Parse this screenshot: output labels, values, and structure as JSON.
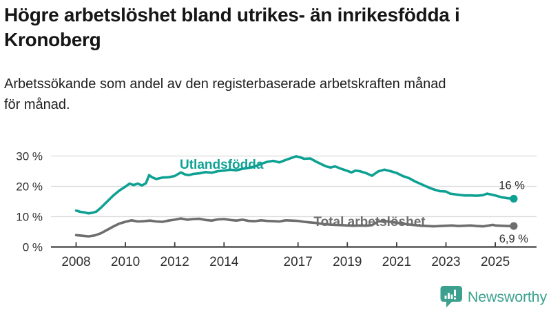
{
  "header": {
    "title_lines": [
      "Högre arbetslöshet bland utrikes- än inrikesfödda i",
      "Kronoberg"
    ],
    "subtitle_lines": [
      "Arbetssökande som andel av den registerbaserade arbetskraften månad",
      "för månad."
    ]
  },
  "chart_data": {
    "type": "line",
    "title": "Högre arbetslöshet bland utrikes- än inrikesfödda i Kronoberg",
    "subtitle": "Arbetssökande som andel av den registerbaserade arbetskraften månad för månad.",
    "x_unit": "decimal year (monthly data)",
    "x_range": [
      2008.0,
      2025.75
    ],
    "ylim": [
      0,
      32
    ],
    "grid": "horizontal",
    "legend_position": "inline-labels",
    "axis_color": "#3d3d3d",
    "grid_color": "#dadada",
    "tick_label_color": "#2f2f2f",
    "y_ticks": {
      "values": [
        0,
        10,
        20,
        30
      ],
      "labels": [
        "0 %",
        "10 %",
        "20 %",
        "30 %"
      ]
    },
    "x_ticks": {
      "values": [
        2008,
        2010,
        2012,
        2014,
        2017,
        2019,
        2021,
        2023,
        2025
      ],
      "labels": [
        "2008",
        "2010",
        "2012",
        "2014",
        "2017",
        "2019",
        "2021",
        "2023",
        "2025"
      ]
    },
    "series": [
      {
        "name": "Utlandsfödda",
        "color": "#0ea193",
        "end_label": "16 %",
        "end_value": 16,
        "inline_label": {
          "text": "Utlandsfödda",
          "x": 2013.9,
          "y": 25.8
        },
        "points": [
          [
            2008.0,
            12.0
          ],
          [
            2008.17,
            11.6
          ],
          [
            2008.33,
            11.4
          ],
          [
            2008.5,
            11.1
          ],
          [
            2008.67,
            11.3
          ],
          [
            2008.83,
            11.7
          ],
          [
            2009.0,
            12.9
          ],
          [
            2009.25,
            14.9
          ],
          [
            2009.5,
            16.9
          ],
          [
            2009.75,
            18.6
          ],
          [
            2010.0,
            19.9
          ],
          [
            2010.17,
            20.9
          ],
          [
            2010.33,
            20.4
          ],
          [
            2010.5,
            20.9
          ],
          [
            2010.67,
            20.3
          ],
          [
            2010.83,
            21.0
          ],
          [
            2010.96,
            23.7
          ],
          [
            2011.08,
            23.0
          ],
          [
            2011.25,
            22.4
          ],
          [
            2011.5,
            22.9
          ],
          [
            2011.75,
            23.0
          ],
          [
            2012.0,
            23.4
          ],
          [
            2012.25,
            24.6
          ],
          [
            2012.42,
            23.9
          ],
          [
            2012.58,
            23.7
          ],
          [
            2012.75,
            24.1
          ],
          [
            2013.0,
            24.3
          ],
          [
            2013.25,
            24.7
          ],
          [
            2013.5,
            24.5
          ],
          [
            2013.75,
            25.0
          ],
          [
            2014.0,
            25.2
          ],
          [
            2014.25,
            25.5
          ],
          [
            2014.5,
            25.3
          ],
          [
            2014.75,
            25.8
          ],
          [
            2015.0,
            26.1
          ],
          [
            2015.25,
            26.6
          ],
          [
            2015.5,
            27.4
          ],
          [
            2015.75,
            28.1
          ],
          [
            2016.0,
            28.4
          ],
          [
            2016.25,
            27.9
          ],
          [
            2016.5,
            28.7
          ],
          [
            2016.75,
            29.4
          ],
          [
            2016.92,
            29.9
          ],
          [
            2017.08,
            29.6
          ],
          [
            2017.25,
            29.1
          ],
          [
            2017.5,
            29.2
          ],
          [
            2017.75,
            28.1
          ],
          [
            2018.0,
            27.1
          ],
          [
            2018.17,
            26.5
          ],
          [
            2018.33,
            26.2
          ],
          [
            2018.5,
            26.6
          ],
          [
            2018.75,
            25.8
          ],
          [
            2019.0,
            25.1
          ],
          [
            2019.17,
            24.6
          ],
          [
            2019.33,
            25.2
          ],
          [
            2019.5,
            25.0
          ],
          [
            2019.75,
            24.4
          ],
          [
            2020.0,
            23.5
          ],
          [
            2020.25,
            24.9
          ],
          [
            2020.5,
            25.5
          ],
          [
            2020.75,
            25.0
          ],
          [
            2021.0,
            24.4
          ],
          [
            2021.25,
            23.4
          ],
          [
            2021.5,
            22.7
          ],
          [
            2021.75,
            21.6
          ],
          [
            2022.0,
            20.7
          ],
          [
            2022.25,
            19.8
          ],
          [
            2022.5,
            19.0
          ],
          [
            2022.75,
            18.4
          ],
          [
            2023.0,
            18.3
          ],
          [
            2023.17,
            17.6
          ],
          [
            2023.33,
            17.4
          ],
          [
            2023.5,
            17.2
          ],
          [
            2023.75,
            17.0
          ],
          [
            2024.0,
            17.0
          ],
          [
            2024.25,
            16.9
          ],
          [
            2024.5,
            17.1
          ],
          [
            2024.67,
            17.6
          ],
          [
            2024.83,
            17.3
          ],
          [
            2025.0,
            17.0
          ],
          [
            2025.25,
            16.4
          ],
          [
            2025.5,
            16.1
          ],
          [
            2025.75,
            15.9
          ]
        ]
      },
      {
        "name": "Total arbetslöshet",
        "color": "#6e6e6e",
        "end_label": "6,9 %",
        "end_value": 6.9,
        "inline_label": {
          "text": "Total arbetslöshet",
          "x": 2019.9,
          "y": 6.9
        },
        "points": [
          [
            2008.0,
            3.9
          ],
          [
            2008.25,
            3.7
          ],
          [
            2008.5,
            3.5
          ],
          [
            2008.75,
            3.8
          ],
          [
            2009.0,
            4.5
          ],
          [
            2009.25,
            5.6
          ],
          [
            2009.5,
            6.7
          ],
          [
            2009.75,
            7.7
          ],
          [
            2010.0,
            8.3
          ],
          [
            2010.25,
            8.8
          ],
          [
            2010.5,
            8.4
          ],
          [
            2010.75,
            8.5
          ],
          [
            2011.0,
            8.7
          ],
          [
            2011.25,
            8.4
          ],
          [
            2011.5,
            8.3
          ],
          [
            2011.75,
            8.7
          ],
          [
            2012.0,
            9.0
          ],
          [
            2012.25,
            9.4
          ],
          [
            2012.5,
            9.0
          ],
          [
            2012.75,
            9.2
          ],
          [
            2013.0,
            9.3
          ],
          [
            2013.25,
            8.9
          ],
          [
            2013.5,
            8.7
          ],
          [
            2013.75,
            9.1
          ],
          [
            2014.0,
            9.2
          ],
          [
            2014.25,
            8.9
          ],
          [
            2014.5,
            8.7
          ],
          [
            2014.75,
            9.0
          ],
          [
            2015.0,
            8.6
          ],
          [
            2015.25,
            8.5
          ],
          [
            2015.5,
            8.8
          ],
          [
            2015.75,
            8.6
          ],
          [
            2016.0,
            8.5
          ],
          [
            2016.25,
            8.4
          ],
          [
            2016.5,
            8.8
          ],
          [
            2016.75,
            8.7
          ],
          [
            2017.0,
            8.6
          ],
          [
            2017.25,
            8.3
          ],
          [
            2017.5,
            8.1
          ],
          [
            2017.75,
            7.9
          ],
          [
            2018.0,
            7.6
          ],
          [
            2018.25,
            7.4
          ],
          [
            2018.5,
            7.3
          ],
          [
            2018.75,
            7.2
          ],
          [
            2019.0,
            7.1
          ],
          [
            2019.25,
            7.0
          ],
          [
            2019.5,
            7.1
          ],
          [
            2019.75,
            7.0
          ],
          [
            2020.0,
            7.2
          ],
          [
            2020.25,
            8.4
          ],
          [
            2020.5,
            8.6
          ],
          [
            2020.75,
            8.3
          ],
          [
            2021.0,
            8.0
          ],
          [
            2021.25,
            7.7
          ],
          [
            2021.5,
            7.4
          ],
          [
            2021.75,
            7.2
          ],
          [
            2022.0,
            7.0
          ],
          [
            2022.25,
            6.9
          ],
          [
            2022.5,
            6.8
          ],
          [
            2022.75,
            6.9
          ],
          [
            2023.0,
            7.0
          ],
          [
            2023.25,
            7.1
          ],
          [
            2023.5,
            6.9
          ],
          [
            2023.75,
            7.0
          ],
          [
            2024.0,
            7.1
          ],
          [
            2024.25,
            6.9
          ],
          [
            2024.5,
            6.8
          ],
          [
            2024.75,
            7.1
          ],
          [
            2024.9,
            7.3
          ],
          [
            2025.0,
            7.1
          ],
          [
            2025.25,
            7.0
          ],
          [
            2025.5,
            6.9
          ],
          [
            2025.75,
            6.9
          ]
        ]
      }
    ]
  },
  "footer": {
    "brand": "Newsworthy",
    "logo_color": "#3ba18e"
  }
}
